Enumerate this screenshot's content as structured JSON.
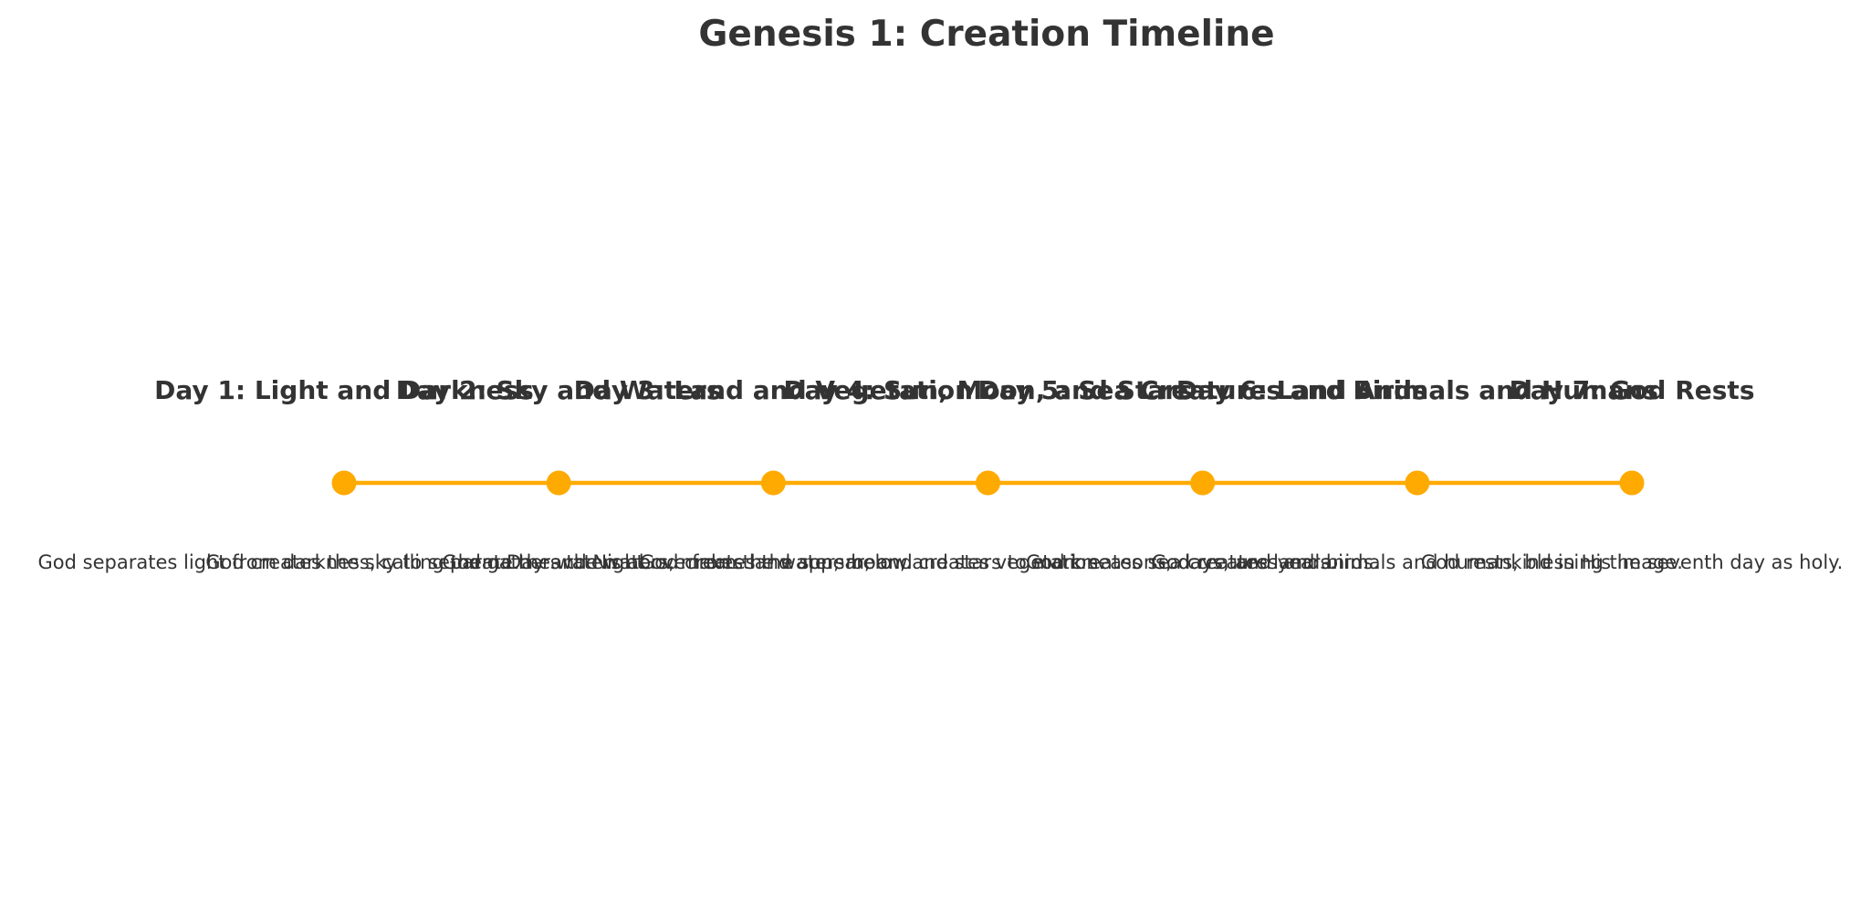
{
  "chart_data": {
    "type": "timeline",
    "title": "Genesis 1: Creation Timeline",
    "line_color": "#FFAA00",
    "marker_color": "#FFAA00",
    "text_color": "#333333",
    "x": [
      1,
      2,
      3,
      4,
      5,
      6,
      7
    ],
    "events": [
      {
        "label": "Day 1: Light and Darkness",
        "description": "God separates light from darkness, calling them Day and Night."
      },
      {
        "label": "Day 2: Sky and Waters",
        "description": "God creates the sky to separate the waters above from the waters below."
      },
      {
        "label": "Day 3: Land and Vegetation",
        "description": "God gathers the waters, makes land appear, and creates vegetation."
      },
      {
        "label": "Day 4: Sun, Moon, and Stars",
        "description": "God creates the sun, moon, and stars to mark seasons, days, and years."
      },
      {
        "label": "Day 5: Sea Creatures and Birds",
        "description": "God creates sea creatures and birds."
      },
      {
        "label": "Day 6: Land Animals and Humans",
        "description": "God creates land animals and humankind in His image."
      },
      {
        "label": "Day 7: God Rests",
        "description": "God rests, blessing the seventh day as holy."
      }
    ]
  }
}
